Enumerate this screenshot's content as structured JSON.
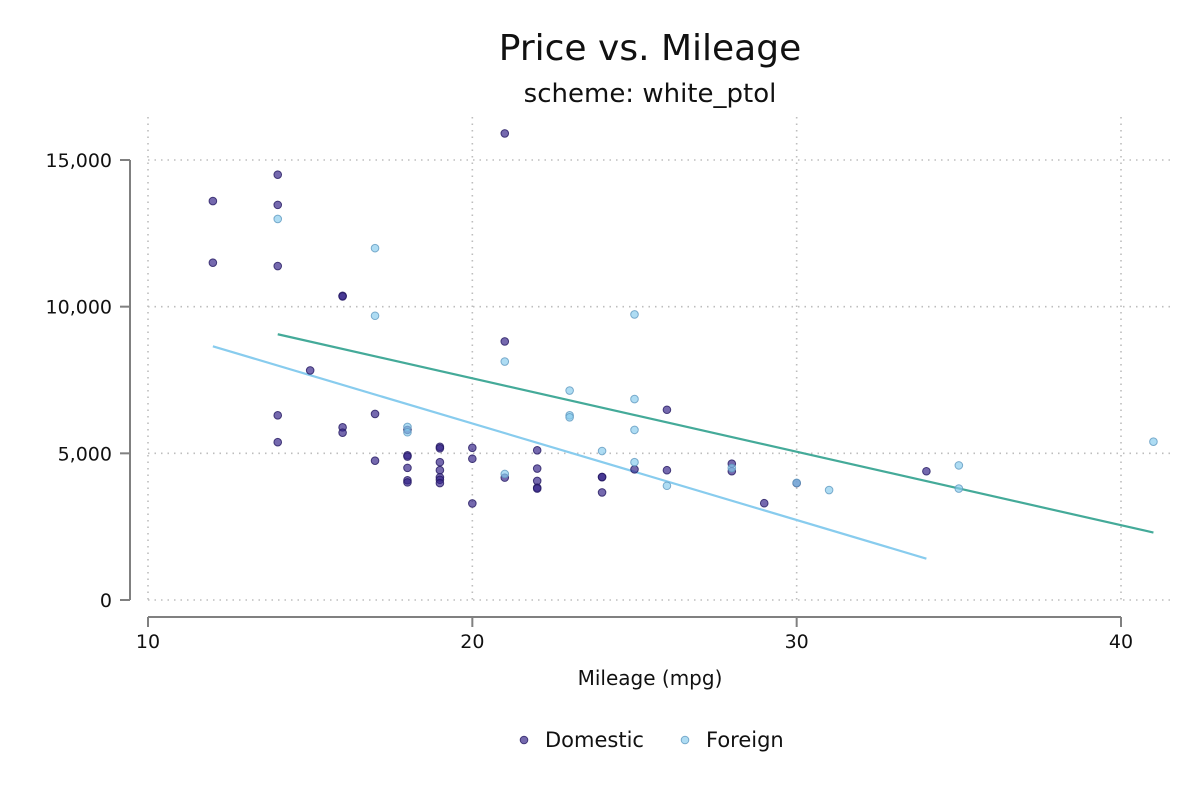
{
  "chart_data": {
    "type": "scatter",
    "title": "Price vs. Mileage",
    "subtitle": "scheme: white_ptol",
    "xlabel": "Mileage (mpg)",
    "ylabel": "",
    "xlim": [
      10,
      41.5
    ],
    "ylim": [
      0,
      16000
    ],
    "xticks": [
      10,
      20,
      30,
      40
    ],
    "xtick_labels": [
      "10",
      "20",
      "30",
      "40"
    ],
    "yticks": [
      0,
      5000,
      10000,
      15000
    ],
    "ytick_labels": [
      "0",
      "5,000",
      "10,000",
      "15,000"
    ],
    "grid": true,
    "legend_position": "bottom",
    "series": [
      {
        "name": "Domestic",
        "color": "#332288",
        "x": [
          12,
          12,
          14,
          14,
          14,
          14,
          14,
          15,
          16,
          16,
          16,
          16,
          17,
          17,
          18,
          18,
          18,
          18,
          18,
          18,
          19,
          19,
          19,
          19,
          19,
          19,
          19,
          20,
          20,
          20,
          21,
          21,
          21,
          22,
          22,
          22,
          22,
          22,
          24,
          24,
          24,
          25,
          26,
          26,
          28,
          28,
          29,
          30,
          34
        ],
        "y": [
          13600,
          11500,
          14500,
          13470,
          11385,
          6295,
          5379,
          7827,
          10371,
          10350,
          5886,
          5705,
          6342,
          4749,
          4934,
          4890,
          4504,
          4082,
          4010,
          5799,
          5222,
          5172,
          4697,
          4425,
          4181,
          4099,
          3984,
          5189,
          4816,
          3291,
          15906,
          8814,
          4172,
          5104,
          4482,
          4060,
          3829,
          3799,
          4187,
          4195,
          3667,
          4453,
          6486,
          4424,
          4647,
          4389,
          3299,
          3984,
          4389
        ]
      },
      {
        "name": "Foreign",
        "color": "#88CCEE",
        "x": [
          14,
          17,
          17,
          18,
          18,
          21,
          21,
          23,
          23,
          23,
          24,
          25,
          25,
          25,
          25,
          26,
          28,
          30,
          31,
          35,
          35,
          41
        ],
        "y": [
          12990,
          11995,
          9690,
          5899,
          5719,
          8129,
          4296,
          7140,
          6295,
          6229,
          5079,
          9735,
          6850,
          5799,
          4697,
          3895,
          4499,
          3995,
          3748,
          4589,
          3798,
          5397
        ]
      }
    ],
    "fit_lines": [
      {
        "series": "Foreign",
        "color": "#44AA99",
        "x": [
          14,
          41
        ],
        "y": [
          9060,
          2300
        ]
      },
      {
        "series": "Domestic",
        "color": "#88CCEE",
        "x": [
          12,
          34
        ],
        "y": [
          8650,
          1410
        ]
      }
    ]
  }
}
